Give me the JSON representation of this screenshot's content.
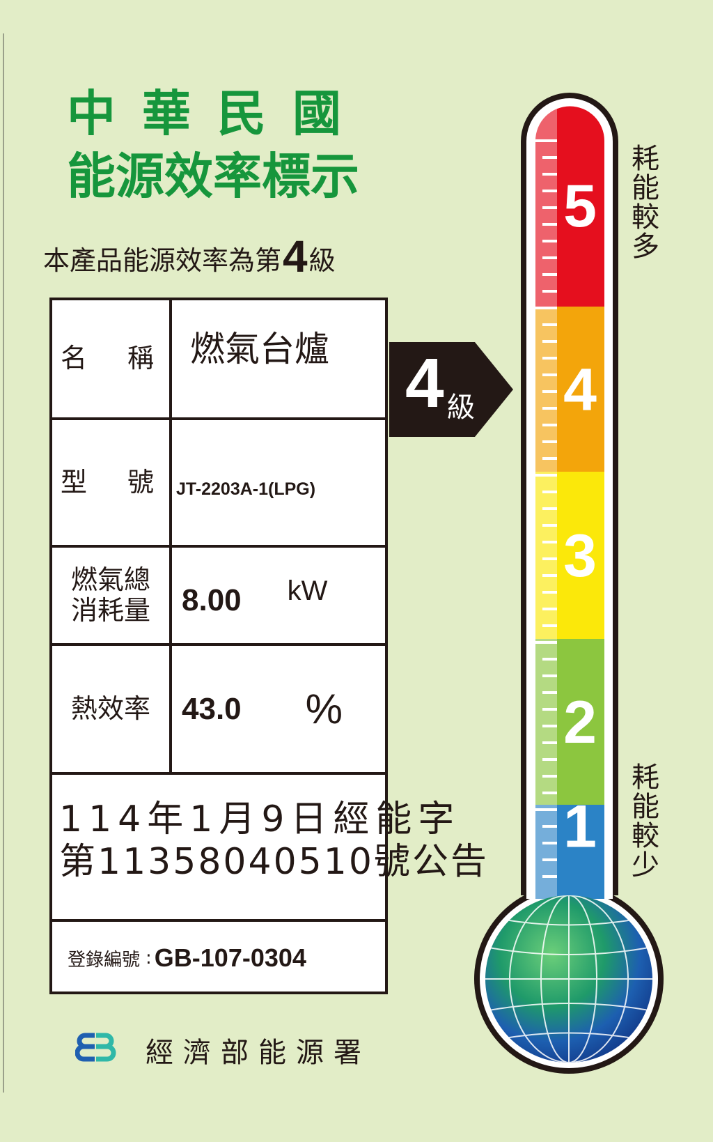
{
  "header": {
    "title_line1": "中華民國",
    "title_line2": "能源效率標示",
    "subtitle_prefix": "本產品能源效率為第",
    "subtitle_grade": "4",
    "subtitle_suffix": "級"
  },
  "table": {
    "name_label": "名　稱",
    "name_value": "燃氣台爐",
    "model_label": "型　號",
    "model_value": "JT-2203A-1(LPG)",
    "consumption_label_1": "燃氣總",
    "consumption_label_2": "消耗量",
    "consumption_value": "8.00",
    "consumption_unit": "kW",
    "efficiency_label": "熱效率",
    "efficiency_value": "43.0",
    "efficiency_unit": "%",
    "announcement_line1": "114年1月9日經能字",
    "announcement_line2": "第11358040510號公告",
    "registration_label": "登錄編號",
    "registration_colon": ":",
    "registration_value": "GB-107-0304"
  },
  "grade_arrow": {
    "number": "4",
    "unit": "級",
    "level": 4
  },
  "thermometer": {
    "levels": [
      {
        "label": "5",
        "color": "#e50f1e"
      },
      {
        "label": "4",
        "color": "#f3a50b"
      },
      {
        "label": "3",
        "color": "#fbe80a"
      },
      {
        "label": "2",
        "color": "#8cc63f"
      },
      {
        "label": "1",
        "color": "#2b83c6"
      }
    ],
    "top_caption": "耗能較多",
    "bottom_caption": "耗能較少"
  },
  "footer": {
    "agency": "經濟部能源署"
  },
  "colors": {
    "background": "#e2edc7",
    "title_green": "#16963c",
    "ink": "#231815"
  }
}
